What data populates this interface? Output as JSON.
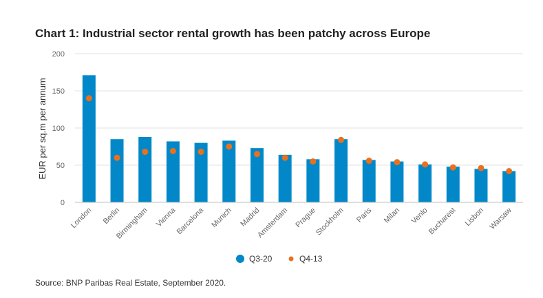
{
  "title": "Chart 1: Industrial sector rental growth has been patchy across Europe",
  "source": "Source: BNP Paribas Real Estate, September 2020.",
  "colors": {
    "bar": "#0288c8",
    "dot": "#e8711f"
  },
  "chart_data": {
    "type": "bar",
    "title": "Chart 1: Industrial sector rental growth has been patchy across Europe",
    "xlabel": "",
    "ylabel": "EUR per sq.m per annum",
    "ylim": [
      0,
      200
    ],
    "yticks": [
      0,
      50,
      100,
      150,
      200
    ],
    "grid": true,
    "legend_position": "bottom-center",
    "categories": [
      "London",
      "Berlin",
      "Birmingham",
      "Vienna",
      "Barcelona",
      "Munich",
      "Madrid",
      "Amsterdam",
      "Prague",
      "Stockholm",
      "Paris",
      "Milan",
      "Venlo",
      "Bucharest",
      "Lisbon",
      "Warsaw"
    ],
    "series": [
      {
        "name": "Q3-20",
        "type": "bar",
        "color": "#0288c8",
        "values": [
          171,
          85,
          88,
          82,
          80,
          83,
          73,
          64,
          58,
          85,
          57,
          55,
          51,
          48,
          45,
          42
        ]
      },
      {
        "name": "Q4-13",
        "type": "scatter",
        "color": "#e8711f",
        "values": [
          140,
          60,
          68,
          69,
          68,
          75,
          65,
          60,
          55,
          84,
          56,
          54,
          51,
          47,
          46,
          42
        ]
      }
    ]
  }
}
